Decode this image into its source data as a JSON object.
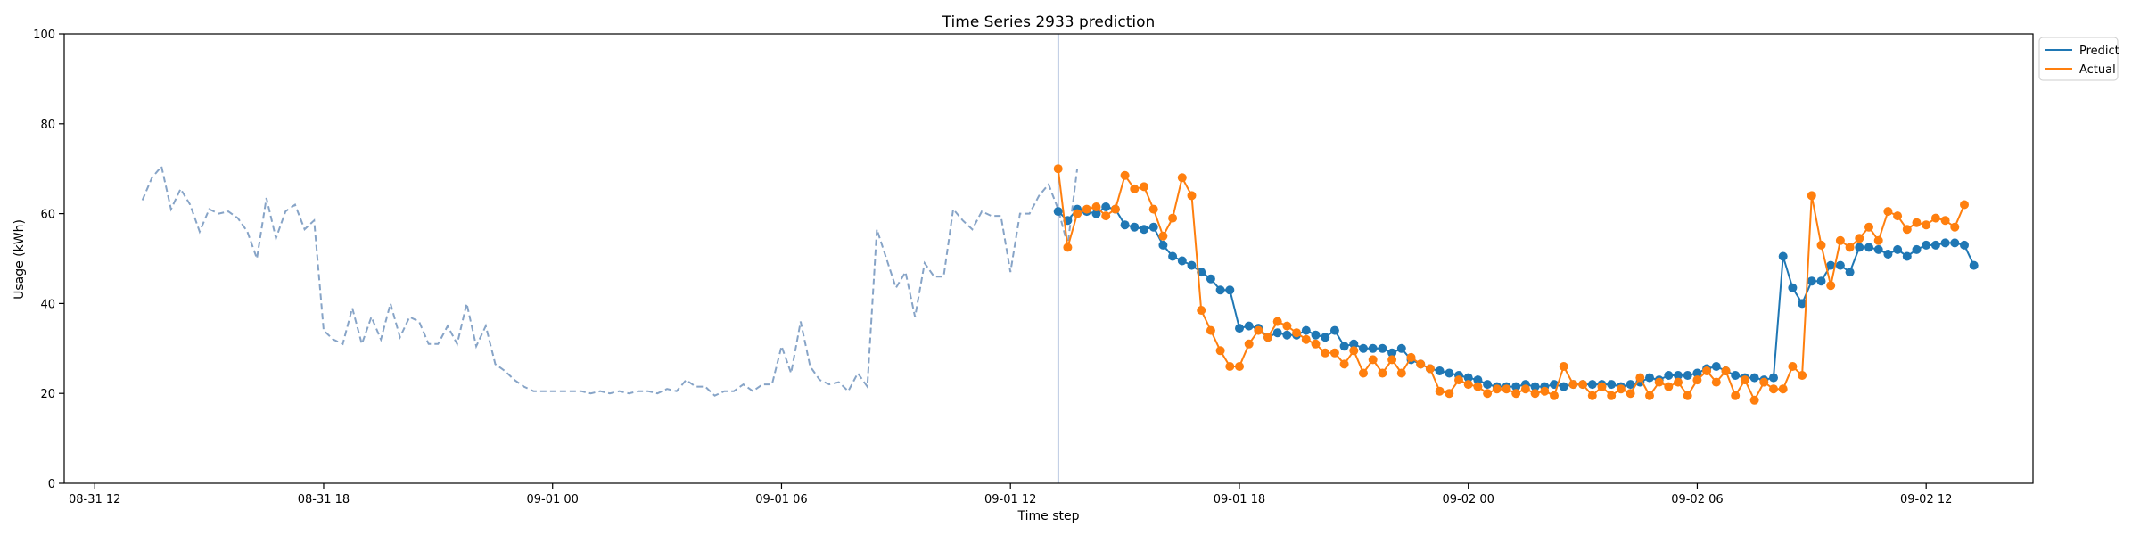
{
  "chart_data": {
    "type": "line",
    "title": "Time Series 2933 prediction",
    "xlabel": "Time step",
    "ylabel": "Usage (kWh)",
    "ylim": [
      0,
      100
    ],
    "x_range": [
      "2024-08-31 11:12",
      "2024-09-02 14:48"
    ],
    "grid": false,
    "legend_position": "top-right",
    "y_ticks": [
      0,
      20,
      40,
      60,
      80,
      100
    ],
    "x_ticks": [
      {
        "t": "2024-08-31 12:00",
        "label": "08-31 12"
      },
      {
        "t": "2024-08-31 18:00",
        "label": "08-31 18"
      },
      {
        "t": "2024-09-01 00:00",
        "label": "09-01 00"
      },
      {
        "t": "2024-09-01 06:00",
        "label": "09-01 06"
      },
      {
        "t": "2024-09-01 12:00",
        "label": "09-01 12"
      },
      {
        "t": "2024-09-01 18:00",
        "label": "09-01 18"
      },
      {
        "t": "2024-09-02 00:00",
        "label": "09-02 00"
      },
      {
        "t": "2024-09-02 06:00",
        "label": "09-02 06"
      },
      {
        "t": "2024-09-02 12:00",
        "label": "09-02 12"
      }
    ],
    "forecast_start": "2024-09-01 13:15",
    "interval_minutes": 15,
    "colors": {
      "history": "#87a4c7",
      "predict": "#1f77b4",
      "actual": "#ff7f0e",
      "divider": "#7b96c8"
    },
    "history": {
      "start": "2024-08-31 13:15",
      "values": [
        63,
        68,
        70.5,
        61,
        65.5,
        62,
        56,
        61,
        60,
        60.5,
        59,
        56,
        50,
        63.5,
        54.5,
        60.5,
        62,
        56.5,
        58.5,
        34,
        32,
        31,
        39,
        31,
        37,
        32,
        40,
        32.5,
        37,
        36,
        31,
        31,
        35,
        31,
        40,
        30.5,
        35,
        26.5,
        25,
        23,
        21.5,
        20.5,
        20.5,
        20.5,
        20.5,
        20.5,
        20.5,
        20,
        20.5,
        20,
        20.5,
        20,
        20.5,
        20.5,
        20,
        21,
        20.5,
        23,
        21.5,
        21.5,
        19.5,
        20.5,
        20.5,
        22,
        20.5,
        22,
        22,
        30.5,
        24.5,
        36,
        26,
        23,
        22,
        22.5,
        20.5,
        24.5,
        21.5,
        56.5,
        50,
        43.5,
        47,
        37,
        49,
        46,
        46,
        61,
        58.5,
        56.5,
        60.5,
        59.5,
        59.5,
        47,
        60,
        60,
        64,
        66.5,
        61,
        53,
        70
      ]
    },
    "series": [
      {
        "name": "Predict",
        "start": "2024-09-01 13:15",
        "values": [
          60.5,
          58.5,
          61,
          60.5,
          60,
          61.5,
          61,
          57.5,
          57,
          56.5,
          57,
          53,
          50.5,
          49.5,
          48.5,
          47,
          45.5,
          43,
          43,
          34.5,
          35,
          34.5,
          32.5,
          33.5,
          33,
          33,
          34,
          33,
          32.5,
          34,
          30.5,
          31,
          30,
          30,
          30,
          29,
          30,
          27.5,
          26.5,
          25.5,
          25,
          24.5,
          24,
          23.5,
          23,
          22,
          21.5,
          21.5,
          21.5,
          22,
          21.5,
          21.5,
          22,
          21.5,
          22,
          22,
          22,
          22,
          22,
          21.5,
          22,
          22.5,
          23.5,
          23,
          24,
          24,
          24,
          24.5,
          25.5,
          26,
          25,
          24,
          23.5,
          23.5,
          23,
          23.5,
          50.5,
          43.5,
          40,
          45,
          45,
          48.5,
          48.5,
          47,
          52.5,
          52.5,
          52,
          51,
          52,
          50.5,
          52,
          53,
          53,
          53.5,
          53.5,
          53,
          48.5
        ]
      },
      {
        "name": "Actual",
        "start": "2024-09-01 13:15",
        "values": [
          70,
          52.5,
          60,
          61,
          61.5,
          59.5,
          61,
          68.5,
          65.5,
          66,
          61,
          55,
          59,
          68,
          64,
          38.5,
          34,
          29.5,
          26,
          26,
          31,
          34,
          32.5,
          36,
          35,
          33.5,
          32,
          31,
          29,
          29,
          26.5,
          29.5,
          24.5,
          27.5,
          24.5,
          27.5,
          24.5,
          28,
          26.5,
          25.5,
          20.5,
          20,
          23,
          22,
          21.5,
          20,
          21,
          21,
          20,
          21,
          20,
          20.5,
          19.5,
          26,
          22,
          22,
          19.5,
          21.5,
          19.5,
          21,
          20,
          23.5,
          19.5,
          22.5,
          21.5,
          22.5,
          19.5,
          23,
          25,
          22.5,
          25,
          19.5,
          23,
          18.5,
          22.5,
          21,
          21,
          26,
          24,
          64,
          53,
          44,
          54,
          52.5,
          54.5,
          57,
          54,
          60.5,
          59.5,
          56.5,
          58,
          57.5,
          59,
          58.5,
          57,
          62
        ]
      }
    ]
  }
}
